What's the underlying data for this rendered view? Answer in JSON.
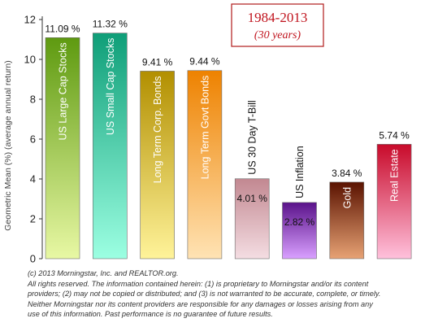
{
  "chart_data": {
    "type": "bar",
    "title": "1984-2013",
    "subtitle": "(30 years)",
    "ylabel": "Geometric Mean (%) (average annual return)",
    "xlabel": "",
    "ylim": [
      0,
      12
    ],
    "yticks": [
      0,
      2,
      4,
      6,
      8,
      10,
      12
    ],
    "grid": false,
    "categories": [
      "US Large Cap Stocks",
      "US Small Cap Stocks",
      "Long Term Corp. Bonds",
      "Long Term Govt Bonds",
      "US 30 Day T-Bill",
      "US Inflation",
      "Gold",
      "Real Estate"
    ],
    "values": [
      11.09,
      11.32,
      9.41,
      9.44,
      4.01,
      2.82,
      3.84,
      5.74
    ],
    "value_labels": [
      "11.09 %",
      "11.32 %",
      "9.41 %",
      "9.44 %",
      "4.01 %",
      "2.82 %",
      "3.84 %",
      "5.74 %"
    ],
    "bar_colors": [
      {
        "top": "#5e9a10",
        "bottom": "#e8f8a4"
      },
      {
        "top": "#0f9e78",
        "bottom": "#9cffe2"
      },
      {
        "top": "#b28f00",
        "bottom": "#fff39a"
      },
      {
        "top": "#ee8200",
        "bottom": "#ffe3b4"
      },
      {
        "top": "#c28891",
        "bottom": "#f4dde2"
      },
      {
        "top": "#5a128a",
        "bottom": "#d9a0ff"
      },
      {
        "top": "#5a1200",
        "bottom": "#e7a274"
      },
      {
        "top": "#c80a2a",
        "bottom": "#ffc1dc"
      }
    ],
    "value_label_inside": [
      false,
      false,
      false,
      false,
      true,
      true,
      false,
      false
    ]
  },
  "footer": {
    "line1": "(c) 2013 Morningstar, Inc. and REALTOR.org.",
    "line2": "All rights reserved. The information contained herein:  (1) is proprietary to Morningstar and/or its content",
    "line3": "providers; (2) may not be copied or distributed; and (3) is not warranted to be accurate, complete, or timely.",
    "line4": "Neither  Morningstar nor its content providers are responsible for any damages or losses arising from any",
    "line5": "use of this information. Past performance is no guarantee of future results."
  },
  "colors": {
    "title_text": "#c0141e",
    "title_border": "#b11a1a",
    "axis": "#333333"
  }
}
